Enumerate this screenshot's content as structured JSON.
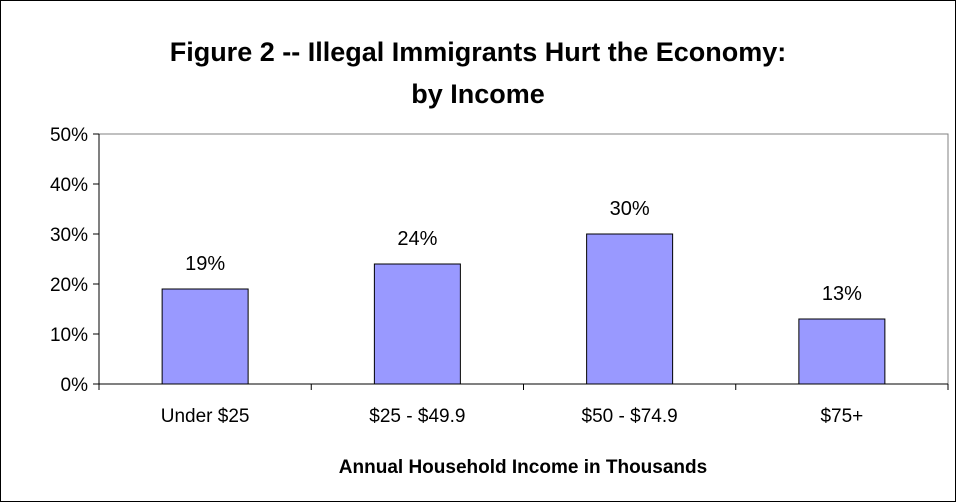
{
  "chart_data": {
    "type": "bar",
    "title_lines": [
      "Figure 2 -- Illegal Immigrants Hurt the Economy:",
      "by Income"
    ],
    "categories": [
      "Under $25",
      "$25 - $49.9",
      "$50 - $74.9",
      "$75+"
    ],
    "values": [
      19,
      24,
      30,
      13
    ],
    "data_labels": [
      "19%",
      "24%",
      "30%",
      "13%"
    ],
    "xlabel": "Annual Household Income in Thousands",
    "ylabel": "",
    "ylim": [
      0,
      50
    ],
    "yticks": [
      0,
      10,
      20,
      30,
      40,
      50
    ],
    "ytick_labels": [
      "0%",
      "10%",
      "20%",
      "30%",
      "40%",
      "50%"
    ],
    "grid": false,
    "legend": "none",
    "bar_color": "#9999ff",
    "bar_edge_color": "#000000"
  }
}
